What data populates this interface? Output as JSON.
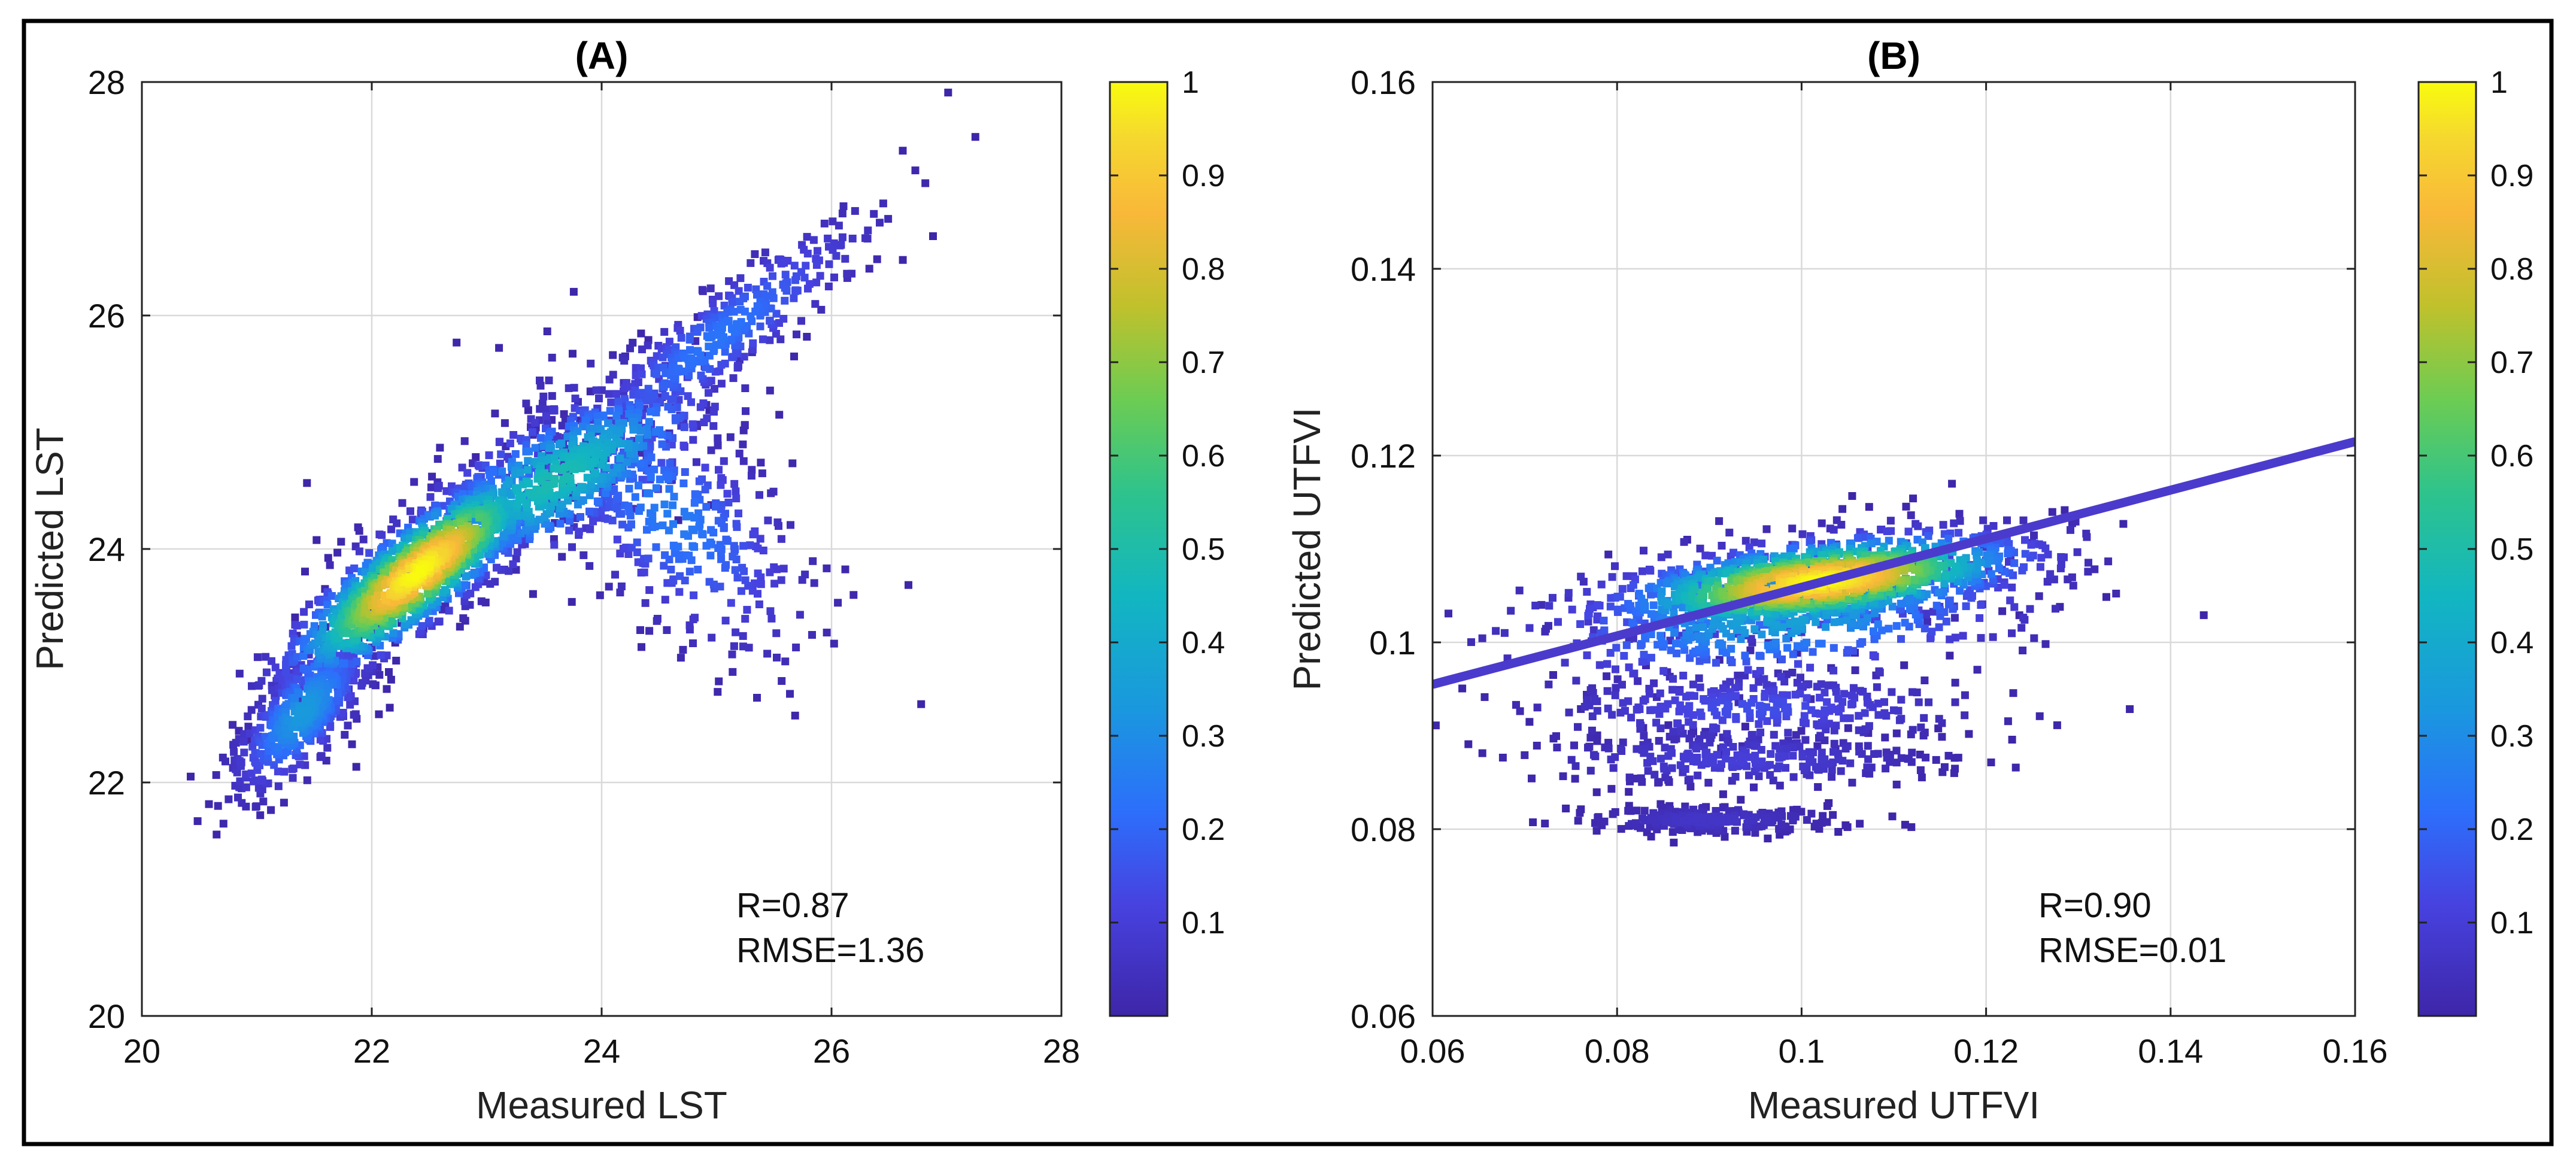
{
  "chart_data": [
    {
      "type": "scatter",
      "title": "(A)",
      "xlabel": "Measured LST",
      "ylabel": "Predicted LST",
      "xlim": [
        20,
        28
      ],
      "ylim": [
        20,
        28
      ],
      "xticks": [
        "20",
        "22",
        "24",
        "26",
        "28"
      ],
      "yticks": [
        "20",
        "22",
        "24",
        "26",
        "28"
      ],
      "grid": true,
      "colorbar": {
        "label": "",
        "range": [
          0,
          1
        ],
        "ticks": [
          "0.1",
          "0.2",
          "0.3",
          "0.4",
          "0.5",
          "0.6",
          "0.7",
          "0.8",
          "0.9",
          "1"
        ]
      },
      "stats": {
        "r": "R=0.87",
        "rmse": "RMSE=1.36"
      },
      "density_clusters": [
        {
          "x": 22.4,
          "y": 23.8,
          "sx": 0.55,
          "sy": 0.45,
          "rho": 0.85,
          "weight": 1.0
        },
        {
          "x": 23.6,
          "y": 24.6,
          "sx": 0.7,
          "sy": 0.45,
          "rho": 0.75,
          "weight": 0.45
        },
        {
          "x": 25.0,
          "y": 25.8,
          "sx": 0.7,
          "sy": 0.55,
          "rho": 0.9,
          "weight": 0.2
        },
        {
          "x": 24.6,
          "y": 24.3,
          "sx": 0.6,
          "sy": 0.6,
          "rho": -0.6,
          "weight": 0.22
        },
        {
          "x": 21.4,
          "y": 22.6,
          "sx": 0.3,
          "sy": 0.35,
          "rho": 0.7,
          "weight": 0.3
        }
      ]
    },
    {
      "type": "scatter",
      "title": "(B)",
      "xlabel": "Measured UTFVI",
      "ylabel": "Predicted UTFVI",
      "xlim": [
        0.06,
        0.16
      ],
      "ylim": [
        0.06,
        0.16
      ],
      "xticks": [
        "0.06",
        "0.08",
        "0.1",
        "0.12",
        "0.14",
        "0.16"
      ],
      "yticks": [
        "0.06",
        "0.08",
        "0.1",
        "0.12",
        "0.14",
        "0.16"
      ],
      "grid": true,
      "fit_line": {
        "x": [
          0.06,
          0.16
        ],
        "y": [
          0.0955,
          0.1215
        ]
      },
      "colorbar": {
        "label": "",
        "range": [
          0,
          1
        ],
        "ticks": [
          "0.1",
          "0.2",
          "0.3",
          "0.4",
          "0.5",
          "0.6",
          "0.7",
          "0.8",
          "0.9",
          "1"
        ]
      },
      "stats": {
        "r": "R=0.90",
        "rmse": "RMSE=0.01"
      },
      "density_clusters": [
        {
          "x": 0.102,
          "y": 0.1065,
          "sx": 0.011,
          "sy": 0.0025,
          "rho": 0.5,
          "weight": 1.0
        },
        {
          "x": 0.098,
          "y": 0.1035,
          "sx": 0.014,
          "sy": 0.004,
          "rho": 0.3,
          "weight": 0.35
        },
        {
          "x": 0.095,
          "y": 0.093,
          "sx": 0.012,
          "sy": 0.002,
          "rho": 0.0,
          "weight": 0.12
        },
        {
          "x": 0.093,
          "y": 0.0875,
          "sx": 0.011,
          "sy": 0.0015,
          "rho": 0.0,
          "weight": 0.08
        },
        {
          "x": 0.09,
          "y": 0.081,
          "sx": 0.007,
          "sy": 0.0008,
          "rho": 0.0,
          "weight": 0.05
        }
      ]
    }
  ]
}
